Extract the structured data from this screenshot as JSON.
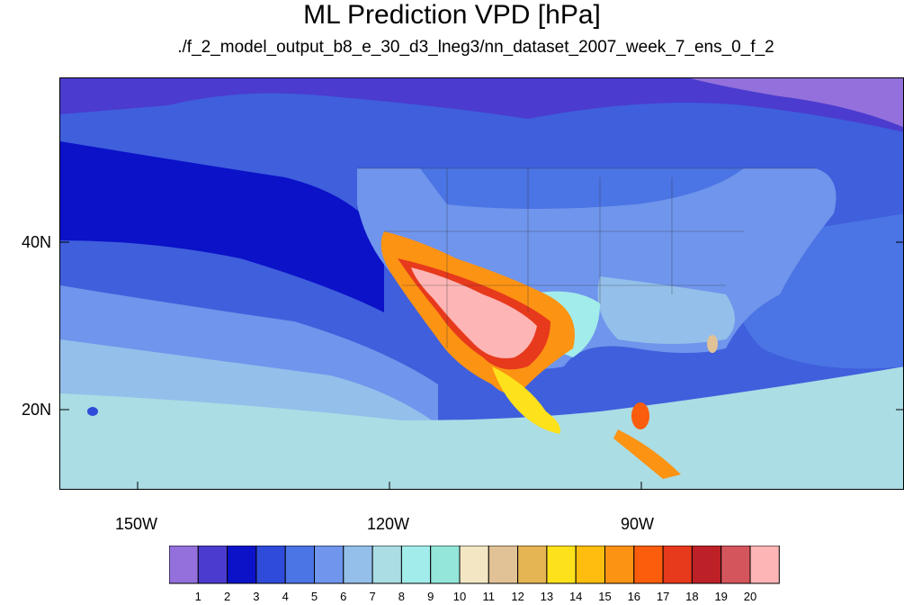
{
  "title": "ML Prediction VPD [hPa]",
  "subtitle": "./f_2_model_output_b8_e_30_d3_lneg3/nn_dataset_2007_week_7_ens_0_f_2",
  "map": {
    "lat_labels": [
      "40N",
      "20N"
    ],
    "lon_labels": [
      "150W",
      "120W",
      "90W"
    ]
  },
  "colorbar": {
    "labels": [
      "1",
      "2",
      "3",
      "4",
      "5",
      "6",
      "7",
      "8",
      "9",
      "10",
      "11",
      "12",
      "13",
      "14",
      "15",
      "16",
      "17",
      "18",
      "19",
      "20"
    ],
    "colors": [
      "#9370db",
      "#4b3bcf",
      "#0b12c8",
      "#2f4bd9",
      "#4b74e4",
      "#6f95ec",
      "#93bfea",
      "#aadde4",
      "#a2eceb",
      "#93e6d9",
      "#f3e6c3",
      "#e0c296",
      "#e6b553",
      "#fde11b",
      "#ffbe0f",
      "#fc9313",
      "#fb5d0d",
      "#e7391c",
      "#bd2127",
      "#d4555c",
      "#fdb5b5"
    ]
  }
}
